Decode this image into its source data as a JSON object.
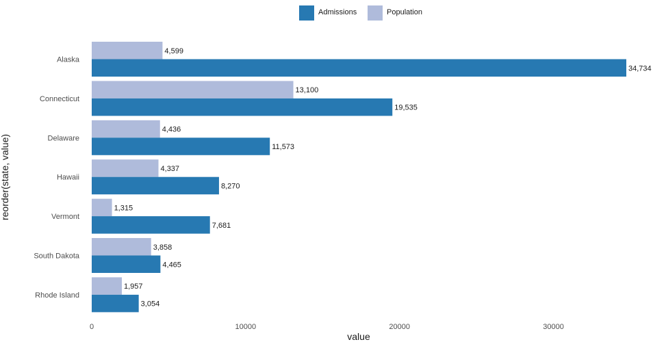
{
  "chart_data": {
    "type": "bar",
    "orientation": "horizontal",
    "xlabel": "value",
    "ylabel": "reorder(state, value)",
    "xlim": [
      0,
      35000
    ],
    "x_ticks": [
      0,
      10000,
      20000,
      30000
    ],
    "x_tick_labels": [
      "0",
      "10000",
      "20000",
      "30000"
    ],
    "grid": false,
    "legend_position": "top",
    "categories": [
      "Alaska",
      "Connecticut",
      "Delaware",
      "Hawaii",
      "Vermont",
      "South Dakota",
      "Rhode Island"
    ],
    "series": [
      {
        "name": "Admissions",
        "color": "#2779b2",
        "values": [
          34734,
          19535,
          11573,
          8270,
          7681,
          4465,
          3054
        ],
        "labels": [
          "34,734",
          "19,535",
          "11,573",
          "8,270",
          "7,681",
          "4,465",
          "3,054"
        ]
      },
      {
        "name": "Population",
        "color": "#afbbdb",
        "values": [
          4599,
          13100,
          4436,
          4337,
          1315,
          3858,
          1957
        ],
        "labels": [
          "4,599",
          "13,100",
          "4,436",
          "4,337",
          "1,315",
          "3,858",
          "1,957"
        ]
      }
    ]
  }
}
